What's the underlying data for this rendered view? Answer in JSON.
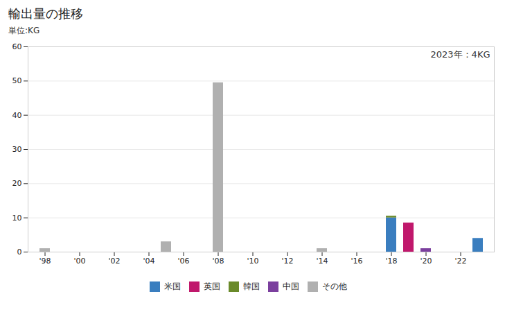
{
  "chart_data": {
    "type": "bar",
    "title": "輸出量の推移",
    "subtitle": "単位:KG",
    "annotation": "2023年：4KG",
    "stacked": true,
    "grid": true,
    "legend": "bottom",
    "categories": [
      "'98",
      null,
      "'00",
      null,
      "'02",
      null,
      "'04",
      null,
      "'06",
      null,
      "'08",
      null,
      "'10",
      null,
      "'12",
      null,
      "'14",
      null,
      "'16",
      null,
      "'18",
      null,
      "'20",
      null,
      "'22",
      null
    ],
    "ylim": [
      0,
      60
    ],
    "yticks": [
      0,
      10,
      20,
      30,
      40,
      50,
      60
    ],
    "series": [
      {
        "name": "米国",
        "color": "#3a7ebf",
        "values": [
          0,
          0,
          0,
          0,
          0,
          0,
          0,
          0,
          0,
          0,
          0,
          0,
          0,
          0,
          0,
          0,
          0,
          0,
          0,
          0,
          10,
          0,
          0,
          0,
          0,
          4
        ]
      },
      {
        "name": "英国",
        "color": "#c0186c",
        "values": [
          0,
          0,
          0,
          0,
          0,
          0,
          0,
          0,
          0,
          0,
          0,
          0,
          0,
          0,
          0,
          0,
          0,
          0,
          0,
          0,
          0,
          8.5,
          0,
          0,
          0,
          0
        ]
      },
      {
        "name": "韓国",
        "color": "#6a8a2a",
        "values": [
          0,
          0,
          0,
          0,
          0,
          0,
          0,
          0,
          0,
          0,
          0,
          0,
          0,
          0,
          0,
          0,
          0,
          0,
          0,
          0,
          0.5,
          0,
          0,
          0,
          0,
          0
        ]
      },
      {
        "name": "中国",
        "color": "#7b3f9e",
        "values": [
          0,
          0,
          0,
          0,
          0,
          0,
          0,
          0,
          0,
          0,
          0,
          0,
          0,
          0,
          0,
          0,
          0,
          0,
          0,
          0,
          0,
          0,
          1,
          0,
          0,
          0
        ]
      },
      {
        "name": "その他",
        "color": "#b0b0b0",
        "values": [
          1,
          0,
          0,
          0,
          0,
          0,
          0,
          3,
          0,
          0,
          49.5,
          0,
          0,
          0,
          0,
          0,
          1,
          0,
          0,
          0,
          0,
          0,
          0,
          0,
          0,
          0
        ]
      }
    ]
  }
}
